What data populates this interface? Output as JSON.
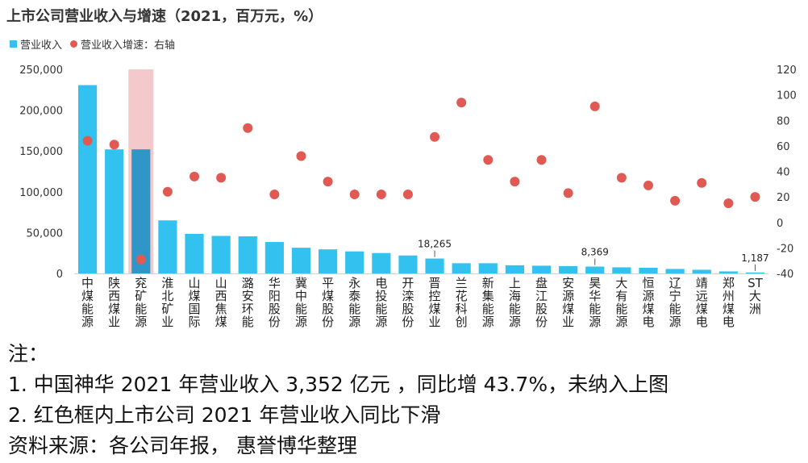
{
  "chart_data": {
    "type": "bar",
    "title": "上市公司营业收入与增速（2021，百万元，%）",
    "legend": {
      "bar": "营业收入",
      "dot": "营业收入增速：右轴",
      "placement": "top-left"
    },
    "categories": [
      "中煤能源",
      "陕西煤业",
      "兖矿能源",
      "淮北矿业",
      "山煤国际",
      "山西焦煤",
      "潞安环能",
      "华阳股份",
      "冀中能源",
      "平煤股份",
      "永泰能源",
      "电投能源",
      "开滦股份",
      "晋控煤业",
      "兰花科创",
      "新集能源",
      "上海能源",
      "盘江股份",
      "安源煤业",
      "昊华能源",
      "大有能源",
      "恒源煤电",
      "辽宁能源",
      "靖远煤电",
      "郑州煤电",
      "ST大洲"
    ],
    "series": [
      {
        "name": "营业收入",
        "type": "bar",
        "axis": "left",
        "values": [
          230700,
          152000,
          152000,
          65000,
          48500,
          46000,
          45500,
          38500,
          31500,
          29500,
          27000,
          25000,
          22000,
          18265,
          12500,
          12500,
          10000,
          9500,
          9000,
          8369,
          7500,
          7000,
          5500,
          4500,
          2500,
          1187
        ],
        "highlight_index": 2
      },
      {
        "name": "营业收入增速：右轴",
        "type": "scatter",
        "axis": "right",
        "values": [
          64,
          61,
          -29,
          24,
          36,
          35,
          74,
          22,
          52,
          32,
          22,
          22,
          22,
          67,
          94,
          49,
          32,
          49,
          23,
          91,
          35,
          29,
          17,
          31,
          15,
          20
        ]
      }
    ],
    "data_labels": [
      {
        "index": 13,
        "text": "18,265"
      },
      {
        "index": 19,
        "text": "8,369"
      },
      {
        "index": 25,
        "text": "1,187"
      }
    ],
    "ylim": [
      0,
      250000
    ],
    "y_ticks": [
      "0",
      "50,000",
      "100,000",
      "150,000",
      "200,000",
      "250,000"
    ],
    "y2lim": [
      -40,
      120
    ],
    "y2_ticks": [
      "-40",
      "-20",
      "0",
      "20",
      "40",
      "60",
      "80",
      "100",
      "120"
    ],
    "xlabel": "",
    "ylabel": "",
    "grid": false,
    "colors": {
      "bar": "#33c2f0",
      "bar_highlight": "#2f96c7",
      "dot": "#e05a53",
      "highlight_box": "#f4c9cb"
    }
  },
  "notes": [
    "注：",
    "1. 中国神华 2021 年营业收入 3,352 亿元 ，同比增 43.7%，未纳入上图",
    "2. 红色框内上市公司 2021 年营业收入同比下滑",
    "资料来源：各公司年报， 惠誉博华整理"
  ]
}
